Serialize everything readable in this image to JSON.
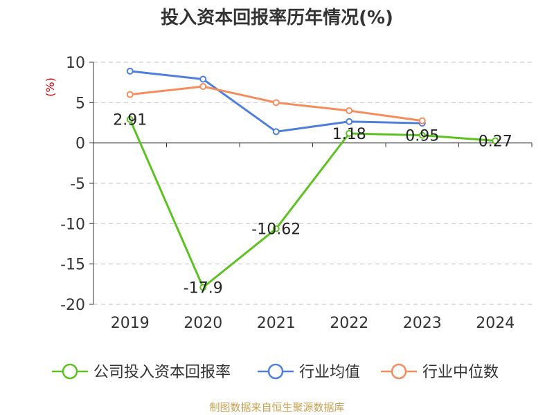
{
  "chart_data": {
    "type": "line",
    "title": "投入资本回报率历年情况(%)",
    "ylabel": "(%)",
    "categories": [
      "2019",
      "2020",
      "2021",
      "2022",
      "2023",
      "2024"
    ],
    "ylim": [
      -20,
      10
    ],
    "yticks": [
      10,
      5,
      0,
      -5,
      -10,
      -15,
      -20
    ],
    "grid": true,
    "legend_position": "bottom",
    "series": [
      {
        "name": "公司投入资本回报率",
        "color": "#5dc121",
        "values": [
          2.91,
          -17.9,
          -10.62,
          1.18,
          0.95,
          0.27
        ],
        "labels": [
          "2.91",
          "-17.9",
          "-10.62",
          "1.18",
          "0.95",
          "0.27"
        ]
      },
      {
        "name": "行业均值",
        "color": "#4d7fdb",
        "values": [
          8.9,
          7.9,
          1.4,
          2.65,
          2.45,
          null
        ]
      },
      {
        "name": "行业中位数",
        "color": "#f68c5c",
        "values": [
          6.0,
          7.0,
          5.0,
          4.0,
          2.75,
          null
        ]
      }
    ]
  },
  "source": "制图数据来自恒生聚源数据库",
  "colors": {
    "unit": "#cc0000",
    "source": "#c8a050",
    "axis": "#333333",
    "grid": "#cccccc"
  }
}
